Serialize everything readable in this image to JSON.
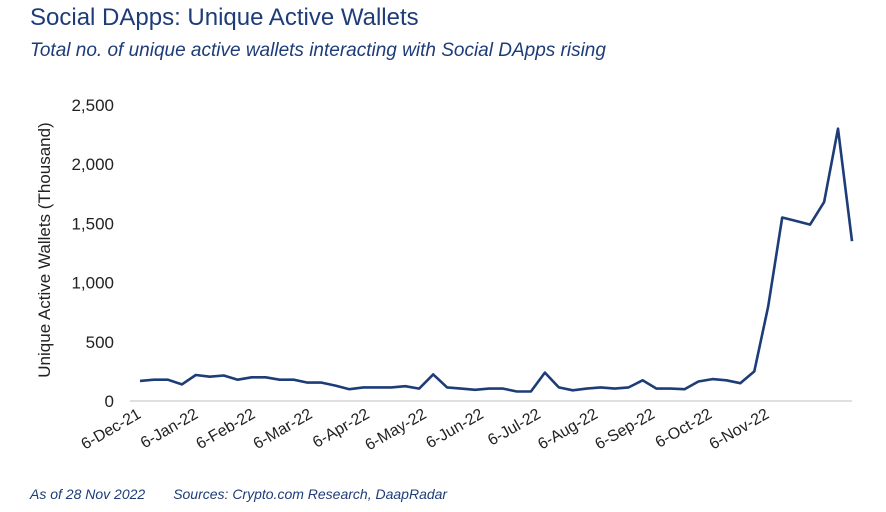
{
  "header": {
    "title": "Social DApps: Unique Active Wallets",
    "subtitle": "Total no. of unique active wallets interacting with Social DApps rising"
  },
  "footer": {
    "as_of": "As of 28 Nov 2022",
    "sources": "Sources: Crypto.com Research, DaapRadar"
  },
  "chart_data": {
    "type": "line",
    "title": "Social DApps: Unique Active Wallets",
    "subtitle": "Total no. of unique active wallets interacting with Social DApps rising",
    "xlabel": "",
    "ylabel": "Unique Active Wallets (Thousand)",
    "ylim": [
      0,
      2500
    ],
    "yticks": [
      0,
      500,
      1000,
      1500,
      2000,
      2500
    ],
    "ytick_labels": [
      "0",
      "500",
      "1,000",
      "1,500",
      "2,000",
      "2,500"
    ],
    "xtick_labels": [
      "6-Dec-21",
      "6-Jan-22",
      "6-Feb-22",
      "6-Mar-22",
      "6-Apr-22",
      "6-May-22",
      "6-Jun-22",
      "6-Jul-22",
      "6-Aug-22",
      "6-Sep-22",
      "6-Oct-22",
      "6-Nov-22"
    ],
    "grid": false,
    "color": "#1d3c78",
    "series": [
      {
        "values": [
          170,
          180,
          180,
          140,
          220,
          205,
          215,
          180,
          200,
          200,
          180,
          180,
          155,
          155,
          130,
          100,
          115,
          115,
          115,
          125,
          105,
          225,
          115,
          105,
          95,
          105,
          105,
          80,
          80,
          240,
          115,
          90,
          105,
          115,
          105,
          115,
          175,
          105,
          105,
          100,
          165,
          185,
          175,
          150,
          250,
          800,
          1550,
          1520,
          1490,
          1680,
          2300,
          1350
        ]
      }
    ]
  }
}
